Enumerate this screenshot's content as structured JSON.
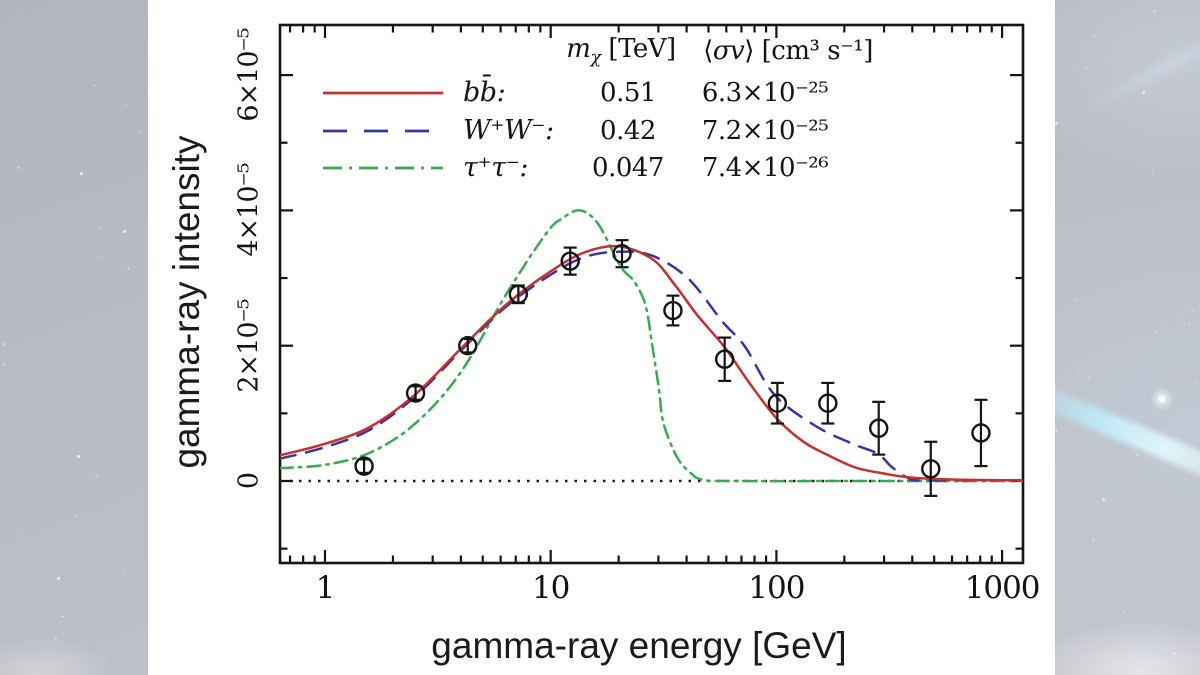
{
  "background": {
    "base_color": "#b8bbc3",
    "panel_color": "#ffffff",
    "streak_color": "#cdeffa"
  },
  "axes": {
    "x_title": "gamma-ray energy [GeV]",
    "y_title": "gamma-ray intensity",
    "x_ticks": [
      {
        "value": 1,
        "label": "1"
      },
      {
        "value": 10,
        "label": "10"
      },
      {
        "value": 100,
        "label": "100"
      },
      {
        "value": 1000,
        "label": "1000"
      }
    ],
    "y_ticks": [
      {
        "value_e5": 0,
        "label": "0"
      },
      {
        "value_e5": 2,
        "label": "2×10⁻⁵"
      },
      {
        "value_e5": 4,
        "label": "4×10⁻⁵"
      },
      {
        "value_e5": 6,
        "label": "6×10⁻⁵"
      }
    ]
  },
  "legend": {
    "mass_header": {
      "prefix": "m",
      "sub": "χ",
      "unit": " [TeV]"
    },
    "sigma_header": {
      "open": "⟨",
      "sv": "σv",
      "rest": "⟩ [cm³ s⁻¹]"
    },
    "rows": [
      {
        "channel": "bb̄:",
        "mass": "0.51",
        "sigma": "6.3×10⁻²⁵",
        "style": "solid",
        "color": "#c92f2c"
      },
      {
        "channel": "W⁺W⁻:",
        "mass": "0.42",
        "sigma": "7.2×10⁻²⁵",
        "style": "dashed",
        "color": "#3434ae"
      },
      {
        "channel": "τ⁺τ⁻:",
        "mass": "0.047",
        "sigma": "7.4×10⁻²⁶",
        "style": "dashdot",
        "color": "#37ab52"
      }
    ]
  },
  "chart_data": {
    "type": "line",
    "title": "",
    "xlabel": "gamma-ray energy [GeV]",
    "ylabel": "gamma-ray intensity",
    "x_scale": "log",
    "xlim": [
      0.63,
      1240
    ],
    "ylim_e5": [
      -1.22,
      6.74
    ],
    "x_major_ticks": [
      1,
      10,
      100,
      1000
    ],
    "y_major_ticks_e5": [
      0,
      2,
      4,
      6
    ],
    "y_minor_ticks_e5": [
      -1,
      1,
      3,
      5
    ],
    "zero_line_e5": 0,
    "grid": false,
    "legend_position": "top",
    "series": [
      {
        "name": "bb̄",
        "mass_tev": 0.51,
        "sigmav_cm3_s": "6.3e-25",
        "color": "#c92f2c",
        "line": "solid",
        "points_logx_ye5": [
          [
            -0.2,
            0.38
          ],
          [
            0.0,
            0.55
          ],
          [
            0.2,
            0.8
          ],
          [
            0.4,
            1.28
          ],
          [
            0.6,
            1.95
          ],
          [
            0.8,
            2.6
          ],
          [
            1.0,
            3.1
          ],
          [
            1.15,
            3.38
          ],
          [
            1.3,
            3.47
          ],
          [
            1.45,
            3.28
          ],
          [
            1.55,
            2.9
          ],
          [
            1.65,
            2.45
          ],
          [
            1.77,
            1.98
          ],
          [
            1.88,
            1.45
          ],
          [
            2.0,
            0.93
          ],
          [
            2.12,
            0.58
          ],
          [
            2.23,
            0.38
          ],
          [
            2.35,
            0.2
          ],
          [
            2.46,
            0.12
          ],
          [
            2.6,
            0.05
          ],
          [
            2.8,
            0.02
          ],
          [
            3.09,
            0.01
          ]
        ]
      },
      {
        "name": "W⁺W⁻",
        "mass_tev": 0.42,
        "sigmav_cm3_s": "7.2e-25",
        "color": "#3434ae",
        "line": "dashed",
        "points_logx_ye5": [
          [
            -0.2,
            0.33
          ],
          [
            0.0,
            0.5
          ],
          [
            0.2,
            0.76
          ],
          [
            0.4,
            1.25
          ],
          [
            0.6,
            1.92
          ],
          [
            0.8,
            2.57
          ],
          [
            1.0,
            3.05
          ],
          [
            1.15,
            3.31
          ],
          [
            1.3,
            3.39
          ],
          [
            1.45,
            3.33
          ],
          [
            1.61,
            2.99
          ],
          [
            1.76,
            2.36
          ],
          [
            1.86,
            1.99
          ],
          [
            1.99,
            1.28
          ],
          [
            2.17,
            0.82
          ],
          [
            2.33,
            0.56
          ],
          [
            2.45,
            0.4
          ],
          [
            2.51,
            0.21
          ],
          [
            2.58,
            0.05
          ],
          [
            2.63,
            0.01
          ],
          [
            2.85,
            0.01
          ],
          [
            3.09,
            0.01
          ]
        ]
      },
      {
        "name": "τ⁺τ⁻",
        "mass_tev": 0.047,
        "sigmav_cm3_s": "7.4e-26",
        "color": "#37ab52",
        "line": "dashdot",
        "points_logx_ye5": [
          [
            -0.2,
            0.19
          ],
          [
            0.0,
            0.24
          ],
          [
            0.2,
            0.42
          ],
          [
            0.4,
            0.85
          ],
          [
            0.6,
            1.6
          ],
          [
            0.81,
            2.8
          ],
          [
            0.98,
            3.66
          ],
          [
            1.05,
            3.88
          ],
          [
            1.13,
            4.0
          ],
          [
            1.21,
            3.8
          ],
          [
            1.31,
            3.17
          ],
          [
            1.37,
            2.95
          ],
          [
            1.42,
            2.6
          ],
          [
            1.45,
            2.0
          ],
          [
            1.48,
            1.35
          ],
          [
            1.5,
            0.85
          ],
          [
            1.56,
            0.35
          ],
          [
            1.62,
            0.12
          ],
          [
            1.67,
            0.02
          ],
          [
            1.8,
            0.0
          ],
          [
            2.4,
            0.0
          ],
          [
            3.09,
            0.0
          ]
        ]
      }
    ],
    "data_points": {
      "marker": "open-circle",
      "color": "#141414",
      "x_gev": [
        1.49,
        2.52,
        4.29,
        7.19,
        12.2,
        20.7,
        34.8,
        59,
        101,
        169,
        284,
        483,
        806
      ],
      "y_e5": [
        0.22,
        1.3,
        2.0,
        2.76,
        3.25,
        3.36,
        2.52,
        1.8,
        1.15,
        1.15,
        0.78,
        0.18,
        0.71
      ],
      "yerr_e5": [
        0.1,
        0.1,
        0.1,
        0.13,
        0.2,
        0.2,
        0.22,
        0.32,
        0.3,
        0.3,
        0.39,
        0.4,
        0.49
      ]
    }
  }
}
